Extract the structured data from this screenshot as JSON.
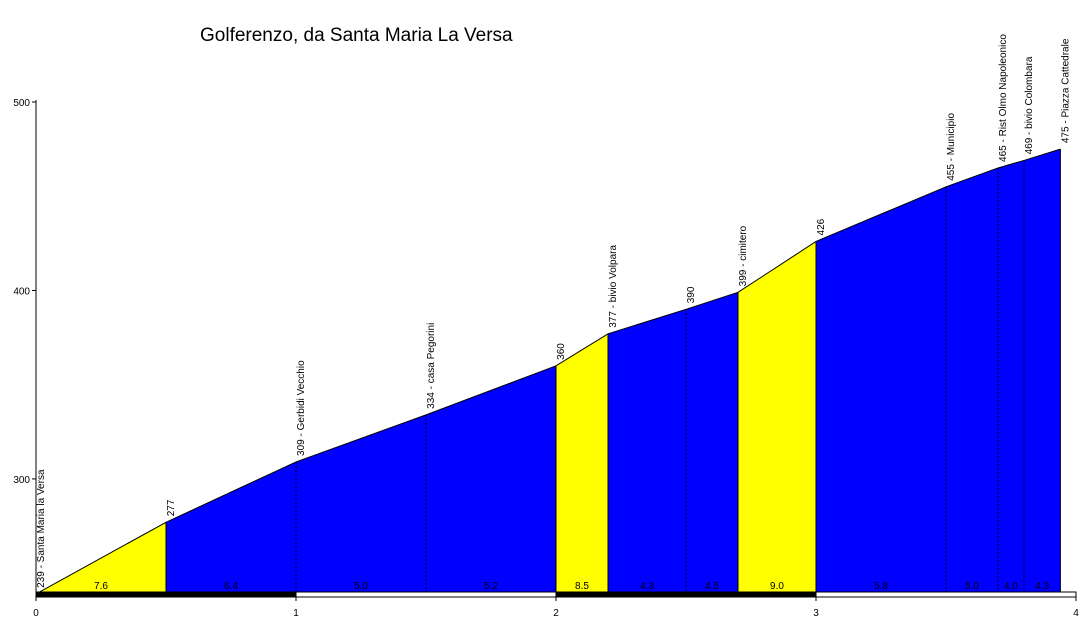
{
  "chart_data": {
    "type": "area",
    "title": "Golferenzo, da Santa Maria La Versa",
    "xlabel": "",
    "ylabel": "",
    "xlim": [
      0,
      4
    ],
    "ylim": [
      240,
      500
    ],
    "x_ticks": [
      "0",
      "1",
      "2",
      "3",
      "4"
    ],
    "y_ticks": [
      "300",
      "400",
      "500"
    ],
    "grid": false,
    "legend": "none",
    "colors": {
      "steep": "#ffff00",
      "normal": "#0000ff",
      "outline": "#000000",
      "background": "#ffffff"
    },
    "points": [
      {
        "x": 0.0,
        "y": 239,
        "label": "239 - Santa Maria la Versa"
      },
      {
        "x": 0.5,
        "y": 277,
        "label": "277"
      },
      {
        "x": 1.0,
        "y": 309,
        "label": "309 - Gerbidi Vecchio"
      },
      {
        "x": 1.5,
        "y": 334,
        "label": "334 - casa Pegorini"
      },
      {
        "x": 2.0,
        "y": 360,
        "label": "360"
      },
      {
        "x": 2.2,
        "y": 377,
        "label": "377 - bivio Volpara"
      },
      {
        "x": 2.5,
        "y": 390,
        "label": "390"
      },
      {
        "x": 2.7,
        "y": 399,
        "label": "399 - cimitero"
      },
      {
        "x": 3.0,
        "y": 426,
        "label": "426"
      },
      {
        "x": 3.5,
        "y": 455,
        "label": "455 - Municipio"
      },
      {
        "x": 3.7,
        "y": 465,
        "label": "465 - Rist Olmo Napoleonico"
      },
      {
        "x": 3.8,
        "y": 469,
        "label": "469 - bivio Colombara"
      },
      {
        "x": 3.94,
        "y": 475,
        "label": "475 - Piazza Cattedrale"
      }
    ],
    "segments": [
      {
        "from": 0.0,
        "to": 0.5,
        "gradient": "7.6",
        "color": "yellow"
      },
      {
        "from": 0.5,
        "to": 1.0,
        "gradient": "6.4",
        "color": "blue"
      },
      {
        "from": 1.0,
        "to": 1.5,
        "gradient": "5.0",
        "color": "blue"
      },
      {
        "from": 1.5,
        "to": 2.0,
        "gradient": "5.2",
        "color": "blue"
      },
      {
        "from": 2.0,
        "to": 2.2,
        "gradient": "8.5",
        "color": "yellow"
      },
      {
        "from": 2.2,
        "to": 2.5,
        "gradient": "4.3",
        "color": "blue"
      },
      {
        "from": 2.5,
        "to": 2.7,
        "gradient": "4.5",
        "color": "blue"
      },
      {
        "from": 2.7,
        "to": 3.0,
        "gradient": "9.0",
        "color": "yellow"
      },
      {
        "from": 3.0,
        "to": 3.5,
        "gradient": "5.8",
        "color": "blue"
      },
      {
        "from": 3.5,
        "to": 3.7,
        "gradient": "5.0",
        "color": "blue"
      },
      {
        "from": 3.7,
        "to": 3.8,
        "gradient": "4.0",
        "color": "blue"
      },
      {
        "from": 3.8,
        "to": 3.94,
        "gradient": "4.3",
        "color": "blue"
      }
    ]
  }
}
